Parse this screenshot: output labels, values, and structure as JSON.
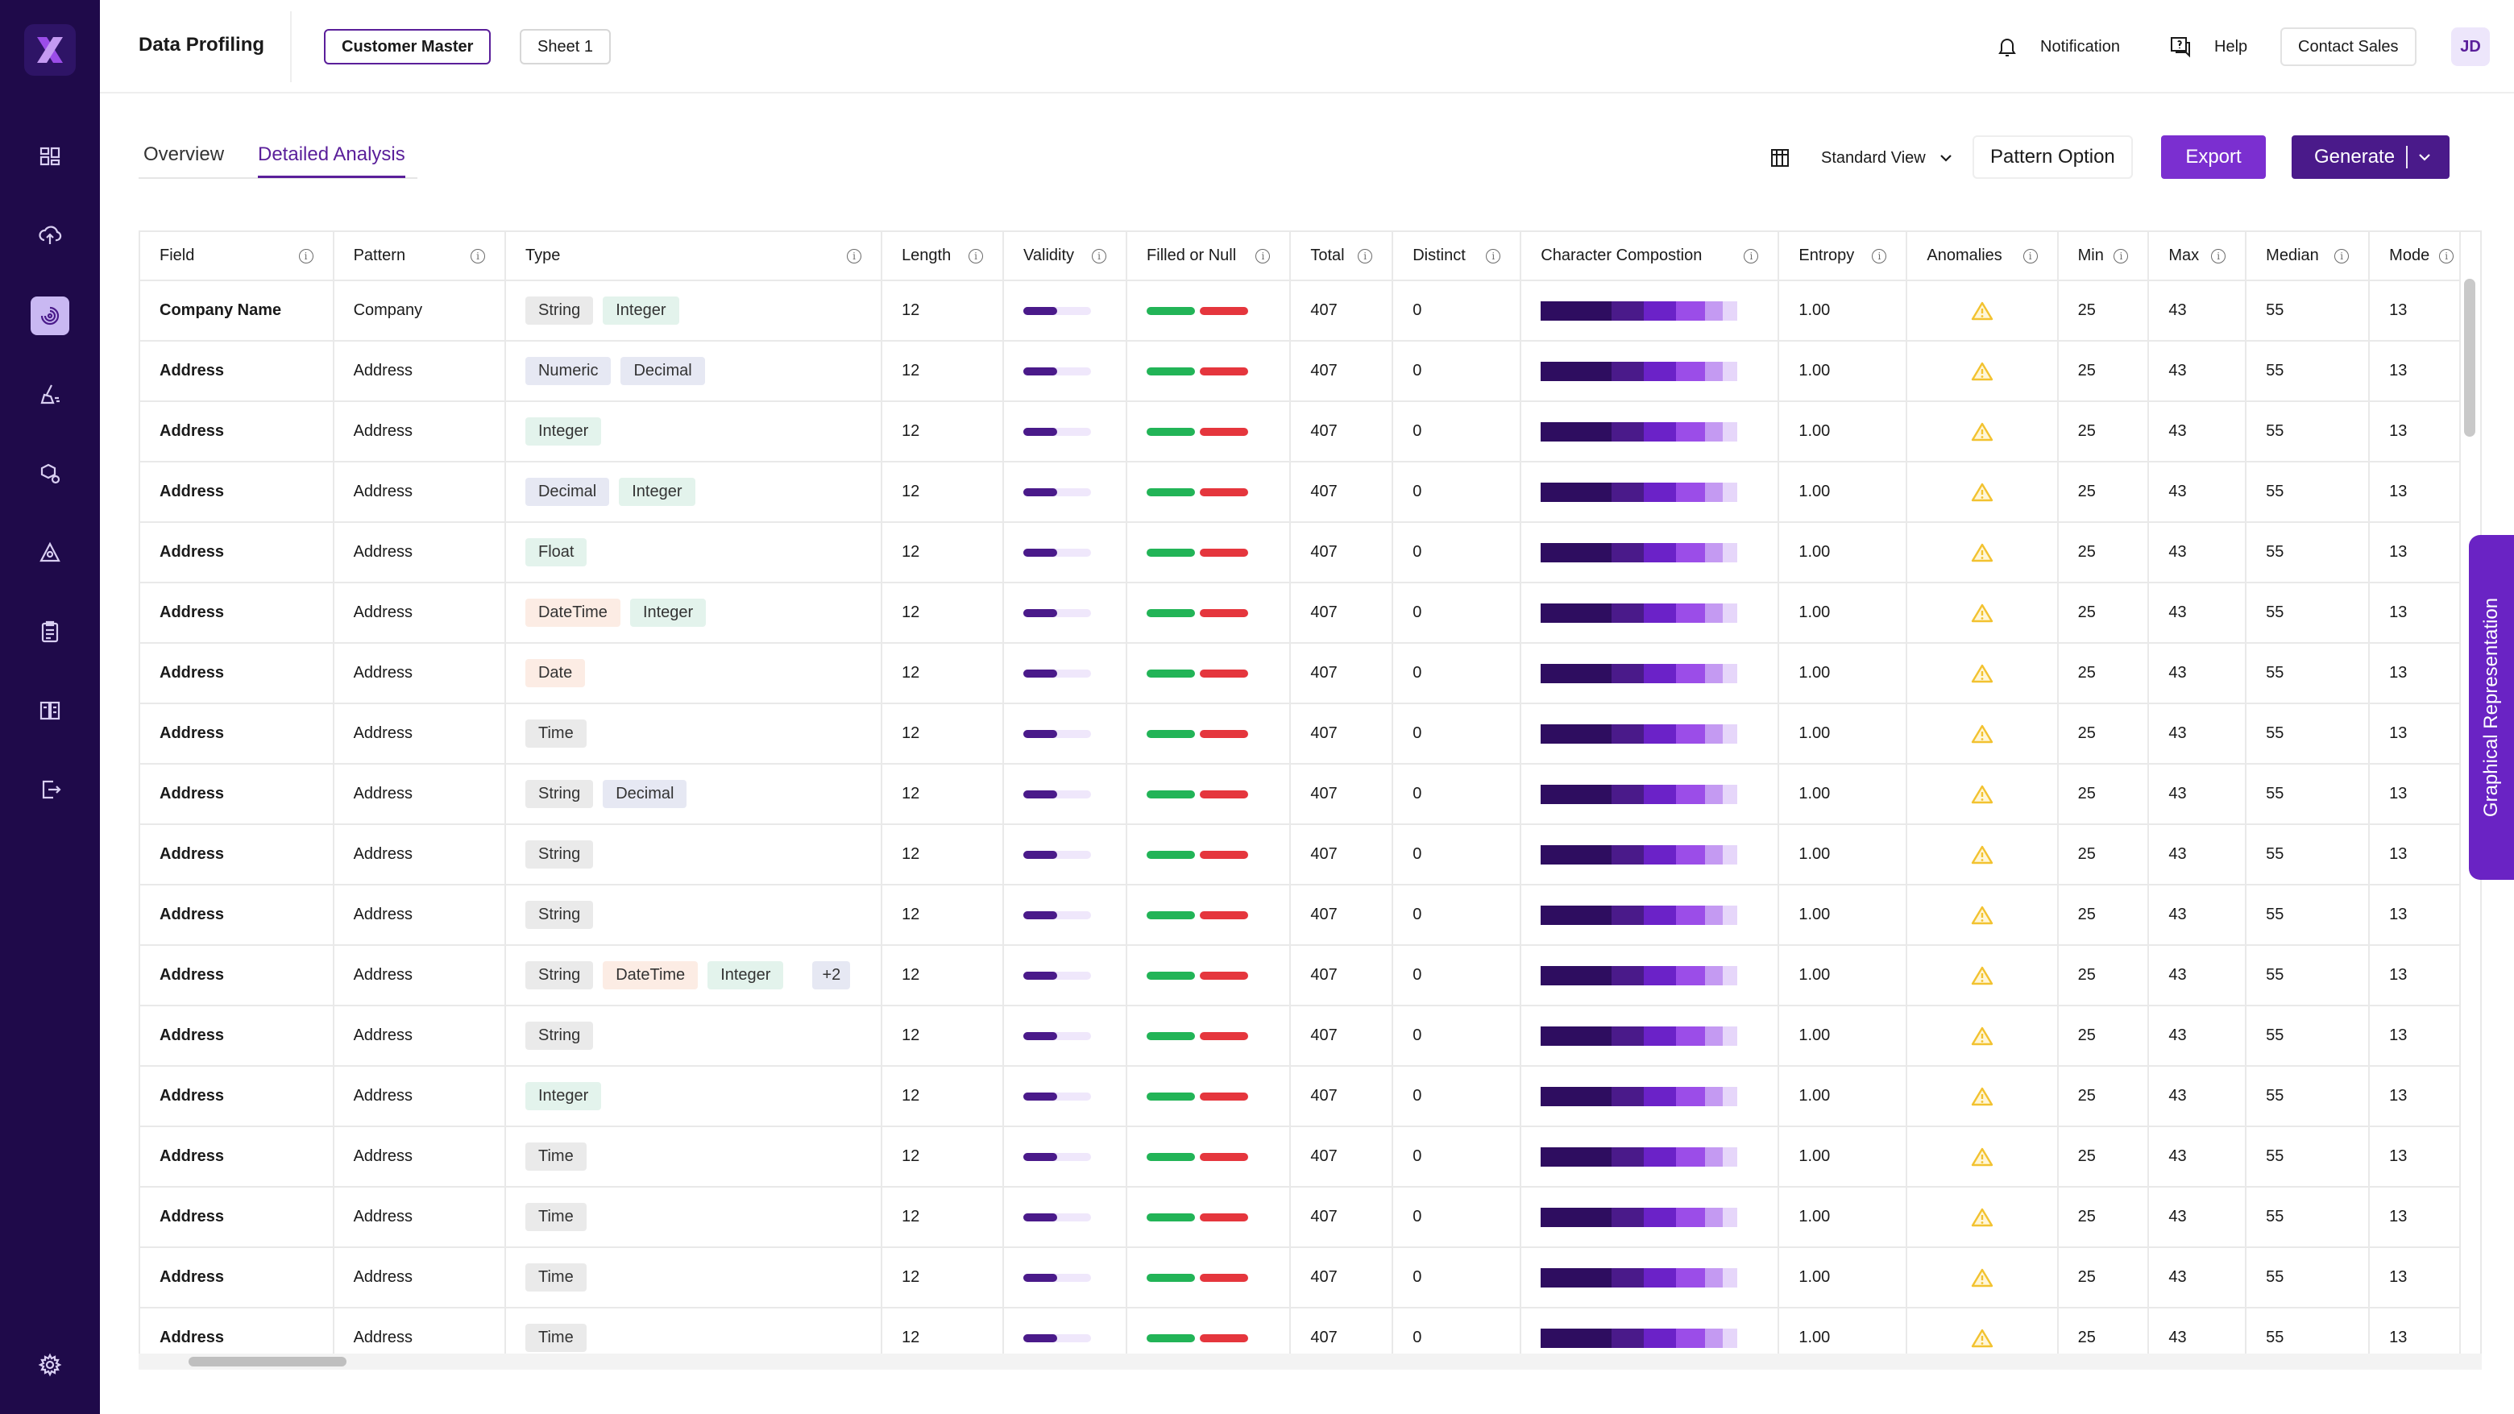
{
  "colors": {
    "sidebar_bg": "#1f0a4a",
    "brand_purple": "#7b2fd0",
    "dark_purple": "#4a1a8a",
    "validity_fill": "#4a1a8a",
    "filled_green": "#22b457",
    "null_red": "#e5363d",
    "warning_yellow": "#f2c230"
  },
  "sidebar": {
    "logo": "brand-x-logo",
    "items": [
      {
        "icon": "dashboard-icon",
        "active": false
      },
      {
        "icon": "cloud-upload-icon",
        "active": false
      },
      {
        "icon": "data-profiling-icon",
        "active": true
      },
      {
        "icon": "data-cleansing-icon",
        "active": false
      },
      {
        "icon": "settings-cubes-icon",
        "active": false
      },
      {
        "icon": "shapes-icon",
        "active": false
      },
      {
        "icon": "clipboard-icon",
        "active": false
      },
      {
        "icon": "compare-icon",
        "active": false
      },
      {
        "icon": "export-file-icon",
        "active": false
      }
    ],
    "settings_icon": "gear-icon"
  },
  "header": {
    "title": "Data Profiling",
    "tabs": [
      {
        "label": "Customer Master",
        "active": true
      },
      {
        "label": "Sheet 1",
        "active": false
      }
    ],
    "notification_label": "Notification",
    "help_label": "Help",
    "contact_sales_label": "Contact Sales",
    "avatar_initials": "JD"
  },
  "subtabs": [
    {
      "label": "Overview",
      "active": false
    },
    {
      "label": "Detailed Analysis",
      "active": true
    }
  ],
  "toolbar": {
    "view_label": "Standard View",
    "pattern_option_label": "Pattern Option",
    "export_label": "Export",
    "generate_label": "Generate"
  },
  "table": {
    "columns": [
      "Field",
      "Pattern",
      "Type",
      "Length",
      "Validity",
      "Filled or Null",
      "Total",
      "Distinct",
      "Character Compostion",
      "Entropy",
      "Anomalies",
      "Min",
      "Max",
      "Median",
      "Mode"
    ],
    "rows": [
      {
        "field": "Company Name",
        "pattern": "Company",
        "types": [
          "String",
          "Integer"
        ],
        "length": "12",
        "validity": 0.5,
        "total": "407",
        "distinct": "0",
        "entropy": "1.00",
        "min": "25",
        "max": "43",
        "median": "55",
        "mode": "13"
      },
      {
        "field": "Address",
        "pattern": "Address",
        "types": [
          "Numeric",
          "Decimal"
        ],
        "length": "12",
        "validity": 0.5,
        "total": "407",
        "distinct": "0",
        "entropy": "1.00",
        "min": "25",
        "max": "43",
        "median": "55",
        "mode": "13"
      },
      {
        "field": "Address",
        "pattern": "Address",
        "types": [
          "Integer"
        ],
        "length": "12",
        "validity": 0.5,
        "total": "407",
        "distinct": "0",
        "entropy": "1.00",
        "min": "25",
        "max": "43",
        "median": "55",
        "mode": "13"
      },
      {
        "field": "Address",
        "pattern": "Address",
        "types": [
          "Decimal",
          "Integer"
        ],
        "length": "12",
        "validity": 0.5,
        "total": "407",
        "distinct": "0",
        "entropy": "1.00",
        "min": "25",
        "max": "43",
        "median": "55",
        "mode": "13"
      },
      {
        "field": "Address",
        "pattern": "Address",
        "types": [
          "Float"
        ],
        "length": "12",
        "validity": 0.5,
        "total": "407",
        "distinct": "0",
        "entropy": "1.00",
        "min": "25",
        "max": "43",
        "median": "55",
        "mode": "13"
      },
      {
        "field": "Address",
        "pattern": "Address",
        "types": [
          "DateTime",
          "Integer"
        ],
        "length": "12",
        "validity": 0.5,
        "total": "407",
        "distinct": "0",
        "entropy": "1.00",
        "min": "25",
        "max": "43",
        "median": "55",
        "mode": "13"
      },
      {
        "field": "Address",
        "pattern": "Address",
        "types": [
          "Date"
        ],
        "length": "12",
        "validity": 0.5,
        "total": "407",
        "distinct": "0",
        "entropy": "1.00",
        "min": "25",
        "max": "43",
        "median": "55",
        "mode": "13"
      },
      {
        "field": "Address",
        "pattern": "Address",
        "types": [
          "Time"
        ],
        "length": "12",
        "validity": 0.5,
        "total": "407",
        "distinct": "0",
        "entropy": "1.00",
        "min": "25",
        "max": "43",
        "median": "55",
        "mode": "13"
      },
      {
        "field": "Address",
        "pattern": "Address",
        "types": [
          "String",
          "Decimal"
        ],
        "length": "12",
        "validity": 0.5,
        "total": "407",
        "distinct": "0",
        "entropy": "1.00",
        "min": "25",
        "max": "43",
        "median": "55",
        "mode": "13"
      },
      {
        "field": "Address",
        "pattern": "Address",
        "types": [
          "String"
        ],
        "length": "12",
        "validity": 0.5,
        "total": "407",
        "distinct": "0",
        "entropy": "1.00",
        "min": "25",
        "max": "43",
        "median": "55",
        "mode": "13"
      },
      {
        "field": "Address",
        "pattern": "Address",
        "types": [
          "String"
        ],
        "length": "12",
        "validity": 0.5,
        "total": "407",
        "distinct": "0",
        "entropy": "1.00",
        "min": "25",
        "max": "43",
        "median": "55",
        "mode": "13"
      },
      {
        "field": "Address",
        "pattern": "Address",
        "types": [
          "String",
          "DateTime",
          "Integer"
        ],
        "more": "+2",
        "length": "12",
        "validity": 0.5,
        "total": "407",
        "distinct": "0",
        "entropy": "1.00",
        "min": "25",
        "max": "43",
        "median": "55",
        "mode": "13"
      },
      {
        "field": "Address",
        "pattern": "Address",
        "types": [
          "String"
        ],
        "length": "12",
        "validity": 0.5,
        "total": "407",
        "distinct": "0",
        "entropy": "1.00",
        "min": "25",
        "max": "43",
        "median": "55",
        "mode": "13"
      },
      {
        "field": "Address",
        "pattern": "Address",
        "types": [
          "Integer"
        ],
        "length": "12",
        "validity": 0.5,
        "total": "407",
        "distinct": "0",
        "entropy": "1.00",
        "min": "25",
        "max": "43",
        "median": "55",
        "mode": "13"
      },
      {
        "field": "Address",
        "pattern": "Address",
        "types": [
          "Time"
        ],
        "length": "12",
        "validity": 0.5,
        "total": "407",
        "distinct": "0",
        "entropy": "1.00",
        "min": "25",
        "max": "43",
        "median": "55",
        "mode": "13"
      },
      {
        "field": "Address",
        "pattern": "Address",
        "types": [
          "Time"
        ],
        "length": "12",
        "validity": 0.5,
        "total": "407",
        "distinct": "0",
        "entropy": "1.00",
        "min": "25",
        "max": "43",
        "median": "55",
        "mode": "13"
      },
      {
        "field": "Address",
        "pattern": "Address",
        "types": [
          "Time"
        ],
        "length": "12",
        "validity": 0.5,
        "total": "407",
        "distinct": "0",
        "entropy": "1.00",
        "min": "25",
        "max": "43",
        "median": "55",
        "mode": "13"
      },
      {
        "field": "Address",
        "pattern": "Address",
        "types": [
          "Time"
        ],
        "length": "12",
        "validity": 0.5,
        "total": "407",
        "distinct": "0",
        "entropy": "1.00",
        "min": "25",
        "max": "43",
        "median": "55",
        "mode": "13"
      }
    ],
    "char_composition_colors": [
      "#2e0d60",
      "#4a1a8a",
      "#6b22c8",
      "#9b4de8",
      "#c49af2",
      "#e6d6fa"
    ],
    "anomaly_icon": "warning-triangle-icon"
  },
  "side_tab_label": "Graphical Representation"
}
